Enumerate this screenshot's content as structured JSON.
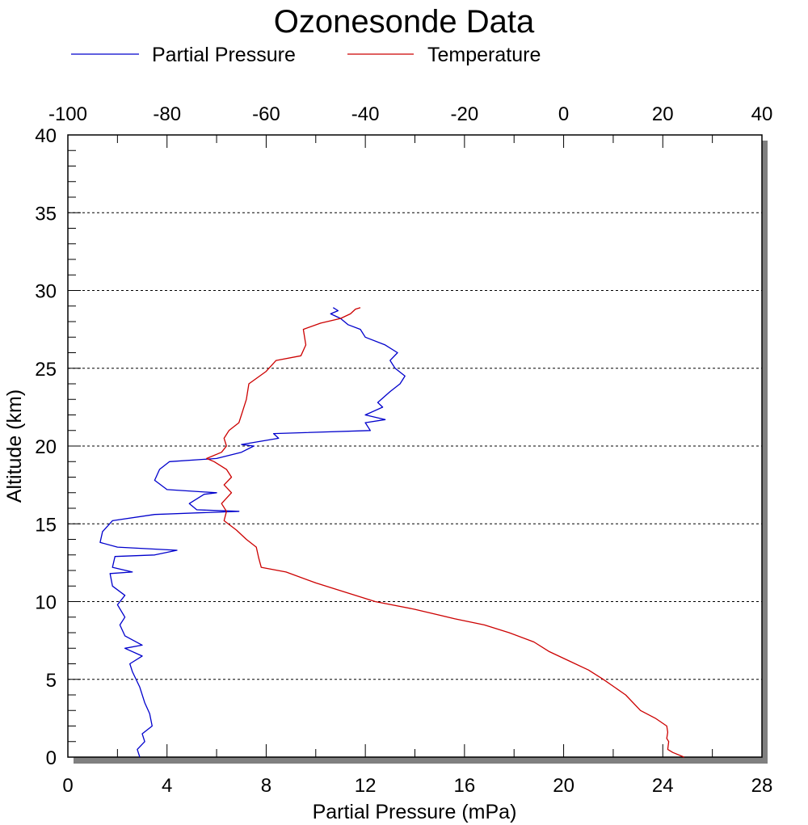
{
  "chart_data": {
    "type": "line",
    "title": "Ozonesonde Data",
    "xlabel": "Partial Pressure (mPa)",
    "ylabel": "Altitude (km)",
    "xlim": [
      0,
      28
    ],
    "ylim": [
      0,
      40
    ],
    "top_xlim": [
      -100,
      40
    ],
    "x_ticks": [
      "0",
      "4",
      "8",
      "12",
      "16",
      "20",
      "24",
      "28"
    ],
    "y_ticks": [
      "0",
      "5",
      "10",
      "15",
      "20",
      "25",
      "30",
      "35",
      "40"
    ],
    "top_ticks": [
      "-100",
      "-80",
      "-60",
      "-40",
      "-20",
      "0",
      "20",
      "40"
    ],
    "grid": "horizontal dashed lines at y-axis major ticks",
    "legend_placement": "top",
    "series": [
      {
        "name": "Partial Pressure",
        "axis": "bottom",
        "color": "#0000cc",
        "points": [
          [
            2.9,
            0.0
          ],
          [
            2.8,
            0.5
          ],
          [
            3.1,
            1.0
          ],
          [
            3.0,
            1.5
          ],
          [
            3.4,
            2.0
          ],
          [
            3.3,
            2.8
          ],
          [
            3.1,
            3.5
          ],
          [
            2.9,
            4.5
          ],
          [
            2.6,
            5.5
          ],
          [
            2.5,
            6.0
          ],
          [
            3.0,
            6.5
          ],
          [
            2.3,
            7.0
          ],
          [
            3.0,
            7.2
          ],
          [
            2.3,
            7.8
          ],
          [
            2.1,
            8.5
          ],
          [
            2.3,
            9.0
          ],
          [
            2.0,
            9.8
          ],
          [
            2.3,
            10.4
          ],
          [
            1.8,
            11.0
          ],
          [
            1.7,
            11.8
          ],
          [
            2.6,
            11.9
          ],
          [
            1.8,
            12.2
          ],
          [
            1.9,
            12.9
          ],
          [
            3.5,
            13.0
          ],
          [
            4.4,
            13.3
          ],
          [
            2.0,
            13.5
          ],
          [
            1.3,
            13.8
          ],
          [
            1.4,
            14.5
          ],
          [
            1.8,
            15.2
          ],
          [
            3.5,
            15.6
          ],
          [
            6.9,
            15.8
          ],
          [
            5.2,
            15.9
          ],
          [
            4.9,
            16.3
          ],
          [
            5.5,
            16.9
          ],
          [
            6.0,
            17.0
          ],
          [
            4.0,
            17.2
          ],
          [
            3.5,
            17.8
          ],
          [
            3.7,
            18.5
          ],
          [
            4.1,
            19.0
          ],
          [
            6.0,
            19.2
          ],
          [
            7.0,
            19.6
          ],
          [
            7.5,
            20.0
          ],
          [
            7.0,
            20.1
          ],
          [
            8.5,
            20.5
          ],
          [
            8.3,
            20.8
          ],
          [
            12.2,
            21.0
          ],
          [
            12.0,
            21.5
          ],
          [
            12.8,
            21.7
          ],
          [
            12.0,
            22.0
          ],
          [
            12.7,
            22.5
          ],
          [
            12.5,
            22.8
          ],
          [
            13.0,
            23.5
          ],
          [
            13.4,
            24.0
          ],
          [
            13.6,
            24.5
          ],
          [
            13.2,
            25.0
          ],
          [
            13.0,
            25.5
          ],
          [
            13.3,
            26.0
          ],
          [
            12.8,
            26.5
          ],
          [
            12.0,
            27.0
          ],
          [
            11.8,
            27.5
          ],
          [
            11.3,
            27.8
          ],
          [
            11.0,
            28.2
          ],
          [
            10.6,
            28.5
          ],
          [
            10.9,
            28.7
          ],
          [
            10.7,
            28.9
          ]
        ]
      },
      {
        "name": "Temperature",
        "axis": "top",
        "color": "#cc0000",
        "points": [
          [
            24.3,
            0.0
          ],
          [
            22.0,
            0.3
          ],
          [
            21.0,
            0.5
          ],
          [
            21.2,
            1.0
          ],
          [
            20.8,
            1.2
          ],
          [
            21.0,
            1.6
          ],
          [
            20.8,
            2.0
          ],
          [
            18.5,
            2.5
          ],
          [
            15.5,
            3.0
          ],
          [
            12.5,
            4.0
          ],
          [
            8.0,
            5.0
          ],
          [
            5.0,
            5.6
          ],
          [
            1.0,
            6.2
          ],
          [
            -3.0,
            6.8
          ],
          [
            -6.0,
            7.4
          ],
          [
            -11.0,
            8.0
          ],
          [
            -16.0,
            8.5
          ],
          [
            -22.0,
            8.9
          ],
          [
            -30.0,
            9.5
          ],
          [
            -38.0,
            10.0
          ],
          [
            -43.0,
            10.5
          ],
          [
            -50.0,
            11.2
          ],
          [
            -56.0,
            11.9
          ],
          [
            -61.0,
            12.2
          ],
          [
            -61.5,
            12.8
          ],
          [
            -62.0,
            13.5
          ],
          [
            -64.0,
            14.0
          ],
          [
            -66.0,
            14.6
          ],
          [
            -68.5,
            15.2
          ],
          [
            -68.0,
            15.8
          ],
          [
            -69.0,
            16.3
          ],
          [
            -67.0,
            17.0
          ],
          [
            -68.5,
            17.5
          ],
          [
            -67.0,
            18.0
          ],
          [
            -68.0,
            18.5
          ],
          [
            -70.5,
            19.0
          ],
          [
            -72.0,
            19.2
          ],
          [
            -69.0,
            19.6
          ],
          [
            -68.0,
            20.0
          ],
          [
            -68.5,
            20.5
          ],
          [
            -67.5,
            21.0
          ],
          [
            -65.5,
            21.5
          ],
          [
            -65.0,
            22.0
          ],
          [
            -64.0,
            23.0
          ],
          [
            -63.5,
            24.0
          ],
          [
            -60.0,
            24.8
          ],
          [
            -58.0,
            25.5
          ],
          [
            -53.0,
            25.8
          ],
          [
            -52.0,
            26.5
          ],
          [
            -52.5,
            27.5
          ],
          [
            -49.0,
            27.9
          ],
          [
            -45.0,
            28.2
          ],
          [
            -43.0,
            28.5
          ],
          [
            -42.0,
            28.8
          ],
          [
            -41.0,
            28.9
          ]
        ]
      }
    ]
  }
}
